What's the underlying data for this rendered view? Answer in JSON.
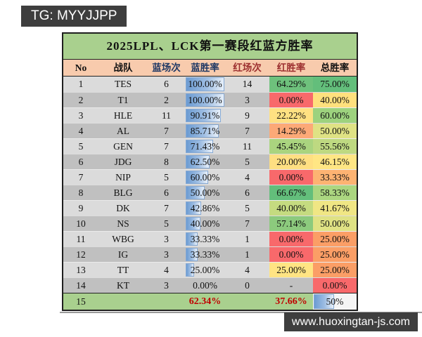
{
  "watermarks": {
    "top_left": "TG: MYYJJPP",
    "bottom_right": "www.huoxingtan-js.com",
    "badge_bg": "#3E3E3E",
    "badge_text_color": "#FFFFFF"
  },
  "table": {
    "title": "2025LPL、LCK第一赛段红蓝方胜率",
    "title_bg": "#A9D08E",
    "header_bg": "#F8CBAD",
    "row_bg_odd": "#DBDBDB",
    "row_bg_even": "#C0C0C0",
    "summary_bg": "#A9D08E",
    "summary_value_color": "#C00000",
    "blue_bar_border": "#86A9D4",
    "blue_bar_color": "#6B9BD2",
    "columns": [
      {
        "label": "No",
        "color": "#111111"
      },
      {
        "label": "战队",
        "color": "#111111"
      },
      {
        "label": "蓝场次",
        "color": "#1F3864"
      },
      {
        "label": "蓝胜率",
        "color": "#1F3864"
      },
      {
        "label": "红场次",
        "color": "#9C2F2F"
      },
      {
        "label": "红胜率",
        "color": "#9C2F2F"
      },
      {
        "label": "总胜率",
        "color": "#111111"
      }
    ],
    "rows": [
      {
        "no": "1",
        "team": "TES",
        "blue_games": "6",
        "blue_wr": "100.00%",
        "blue_bar_pct": 100,
        "red_games": "14",
        "red_wr": "64.29%",
        "red_bg": "#6EC17C",
        "total_wr": "75.00%",
        "total_bg": "#63BE7B"
      },
      {
        "no": "2",
        "team": "T1",
        "blue_games": "2",
        "blue_wr": "100.00%",
        "blue_bar_pct": 100,
        "red_games": "3",
        "red_wr": "0.00%",
        "red_bg": "#F8696B",
        "total_wr": "40.00%",
        "total_bg": "#FFE07D"
      },
      {
        "no": "3",
        "team": "HLE",
        "blue_games": "11",
        "blue_wr": "90.91%",
        "blue_bar_pct": 90.91,
        "red_games": "9",
        "red_wr": "22.22%",
        "red_bg": "#FFE182",
        "total_wr": "60.00%",
        "total_bg": "#9DD27E"
      },
      {
        "no": "4",
        "team": "AL",
        "blue_games": "7",
        "blue_wr": "85.71%",
        "blue_bar_pct": 85.71,
        "red_games": "7",
        "red_wr": "14.29%",
        "red_bg": "#FCA977",
        "total_wr": "50.00%",
        "total_bg": "#DFE284"
      },
      {
        "no": "5",
        "team": "GEN",
        "blue_games": "7",
        "blue_wr": "71.43%",
        "blue_bar_pct": 71.43,
        "red_games": "11",
        "red_wr": "45.45%",
        "red_bg": "#AAD47F",
        "total_wr": "55.56%",
        "total_bg": "#BED981"
      },
      {
        "no": "6",
        "team": "JDG",
        "blue_games": "8",
        "blue_wr": "62.50%",
        "blue_bar_pct": 62.5,
        "red_games": "5",
        "red_wr": "20.00%",
        "red_bg": "#FFDF82",
        "total_wr": "46.15%",
        "total_bg": "#FFE684"
      },
      {
        "no": "7",
        "team": "NIP",
        "blue_games": "5",
        "blue_wr": "60.00%",
        "blue_bar_pct": 60,
        "red_games": "4",
        "red_wr": "0.00%",
        "red_bg": "#F8696B",
        "total_wr": "33.33%",
        "total_bg": "#FDB372"
      },
      {
        "no": "8",
        "team": "BLG",
        "blue_games": "6",
        "blue_wr": "50.00%",
        "blue_bar_pct": 50,
        "red_games": "6",
        "red_wr": "66.67%",
        "red_bg": "#63BE7B",
        "total_wr": "58.33%",
        "total_bg": "#ABD680"
      },
      {
        "no": "9",
        "team": "DK",
        "blue_games": "7",
        "blue_wr": "42.86%",
        "blue_bar_pct": 42.86,
        "red_games": "5",
        "red_wr": "40.00%",
        "red_bg": "#C5DB80",
        "total_wr": "41.67%",
        "total_bg": "#F0E684"
      },
      {
        "no": "10",
        "team": "NS",
        "blue_games": "5",
        "blue_wr": "40.00%",
        "blue_bar_pct": 40,
        "red_games": "7",
        "red_wr": "57.14%",
        "red_bg": "#8CCA7D",
        "total_wr": "50.00%",
        "total_bg": "#DFE284"
      },
      {
        "no": "11",
        "team": "WBG",
        "blue_games": "3",
        "blue_wr": "33.33%",
        "blue_bar_pct": 33.33,
        "red_games": "1",
        "red_wr": "0.00%",
        "red_bg": "#F8696B",
        "total_wr": "25.00%",
        "total_bg": "#FB9E66"
      },
      {
        "no": "12",
        "team": "IG",
        "blue_games": "3",
        "blue_wr": "33.33%",
        "blue_bar_pct": 33.33,
        "red_games": "1",
        "red_wr": "0.00%",
        "red_bg": "#F8696B",
        "total_wr": "25.00%",
        "total_bg": "#FB9E66"
      },
      {
        "no": "13",
        "team": "TT",
        "blue_games": "4",
        "blue_wr": "25.00%",
        "blue_bar_pct": 25,
        "red_games": "4",
        "red_wr": "25.00%",
        "red_bg": "#FFE483",
        "total_wr": "25.00%",
        "total_bg": "#FB9E66"
      },
      {
        "no": "14",
        "team": "KT",
        "blue_games": "3",
        "blue_wr": "0.00%",
        "blue_bar_pct": 0,
        "red_games": "0",
        "red_wr": "-",
        "red_bg": null,
        "total_wr": "0.00%",
        "total_bg": "#F8696B"
      }
    ],
    "summary": {
      "no": "15",
      "blue_wr": "62.34%",
      "red_wr": "37.66%",
      "total_wr": "50%",
      "total_bar_pct": 50
    }
  },
  "chart_data": {
    "type": "table",
    "title": "2025LPL、LCK第一赛段红蓝方胜率",
    "columns": [
      "No",
      "战队",
      "蓝场次",
      "蓝胜率",
      "红场次",
      "红胜率",
      "总胜率"
    ],
    "rows": [
      [
        1,
        "TES",
        6,
        "100.00%",
        14,
        "64.29%",
        "75.00%"
      ],
      [
        2,
        "T1",
        2,
        "100.00%",
        3,
        "0.00%",
        "40.00%"
      ],
      [
        3,
        "HLE",
        11,
        "90.91%",
        9,
        "22.22%",
        "60.00%"
      ],
      [
        4,
        "AL",
        7,
        "85.71%",
        7,
        "14.29%",
        "50.00%"
      ],
      [
        5,
        "GEN",
        7,
        "71.43%",
        11,
        "45.45%",
        "55.56%"
      ],
      [
        6,
        "JDG",
        8,
        "62.50%",
        5,
        "20.00%",
        "46.15%"
      ],
      [
        7,
        "NIP",
        5,
        "60.00%",
        4,
        "0.00%",
        "33.33%"
      ],
      [
        8,
        "BLG",
        6,
        "50.00%",
        6,
        "66.67%",
        "58.33%"
      ],
      [
        9,
        "DK",
        7,
        "42.86%",
        5,
        "40.00%",
        "41.67%"
      ],
      [
        10,
        "NS",
        5,
        "40.00%",
        7,
        "57.14%",
        "50.00%"
      ],
      [
        11,
        "WBG",
        3,
        "33.33%",
        1,
        "0.00%",
        "25.00%"
      ],
      [
        12,
        "IG",
        3,
        "33.33%",
        1,
        "0.00%",
        "25.00%"
      ],
      [
        13,
        "TT",
        4,
        "25.00%",
        4,
        "25.00%",
        "25.00%"
      ],
      [
        14,
        "KT",
        3,
        "0.00%",
        0,
        "-",
        "0.00%"
      ]
    ],
    "summary_row": [
      15,
      "",
      "",
      "62.34%",
      "",
      "37.66%",
      "50%"
    ]
  }
}
